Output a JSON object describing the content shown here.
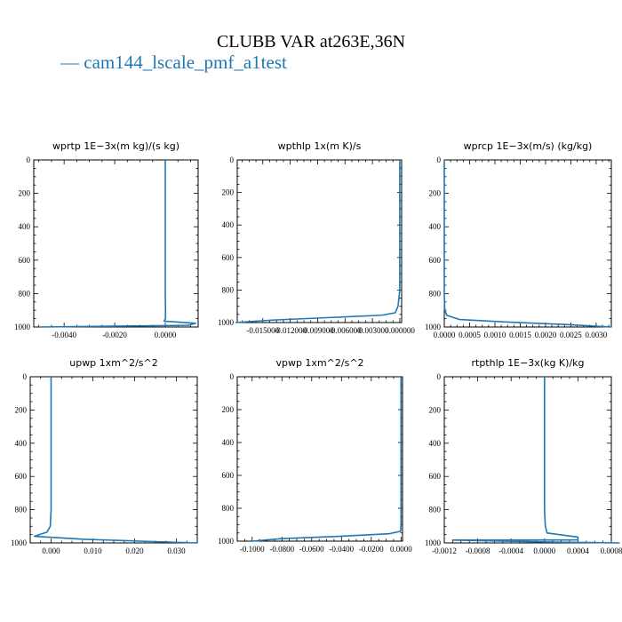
{
  "page_title": "CLUBB VAR at263E,36N",
  "legend": {
    "label": "cam144_lscale_pmf_a1test",
    "color": "#1f77b4"
  },
  "chart_data": [
    {
      "type": "line",
      "title": "wprtp  1E−3x(m kg)/(s kg)",
      "series": [
        {
          "name": "cam144_lscale_pmf_a1test",
          "color": "#1f77b4",
          "x": [
            0.0,
            0.0,
            0.0,
            0.0,
            0.0,
            1e-05,
            1e-05,
            -5e-05,
            0.0012,
            0.0009,
            -0.005
          ],
          "y": [
            0,
            200,
            400,
            600,
            800,
            900,
            950,
            965,
            978,
            990,
            1000
          ]
        }
      ],
      "xlim": [
        -0.0052,
        0.0013
      ],
      "xticks": [
        -0.004,
        -0.002,
        0.0
      ],
      "xtick_labels": [
        "-0.0040",
        "-0.0020",
        "0.0000"
      ],
      "ylim": [
        1000,
        0
      ],
      "yticks": [
        0,
        200,
        400,
        600,
        800,
        1000
      ],
      "ytick_labels": [
        "0",
        "200",
        "400",
        "600",
        "800",
        "1000"
      ],
      "xlabel": "",
      "ylabel": ""
    },
    {
      "type": "line",
      "title": "wpthlp  1x(m K)/s",
      "series": [
        {
          "name": "cam144_lscale_pmf_a1test",
          "color": "#1f77b4",
          "x": [
            0.0,
            0.0,
            0.0,
            0.0,
            0.0,
            -0.0002,
            -0.0005,
            -0.002,
            -0.008,
            -0.014,
            -0.018
          ],
          "y": [
            0,
            200,
            400,
            600,
            800,
            900,
            940,
            955,
            970,
            985,
            1000
          ]
        }
      ],
      "xlim": [
        -0.0178,
        0.0002
      ],
      "xticks": [
        -0.015,
        -0.012,
        -0.009,
        -0.006,
        -0.003,
        0.0
      ],
      "xtick_labels": [
        "-0.015000",
        "-0.012000",
        "-0.009000",
        "-0.006000",
        "-0.003000",
        "0.000000"
      ],
      "ylim": [
        1000,
        0
      ],
      "yticks": [
        0,
        200,
        400,
        600,
        800,
        1000
      ],
      "ytick_labels": [
        "0",
        "200",
        "400",
        "600",
        "800",
        "1000"
      ],
      "xlabel": "",
      "ylabel": ""
    },
    {
      "type": "line",
      "title": "wprcp  1E−3x(m/s) (kg/kg)",
      "series": [
        {
          "name": "cam144_lscale_pmf_a1test",
          "color": "#1f77b4",
          "x": [
            0.0,
            0.0,
            0.0,
            0.0,
            0.0,
            1e-05,
            5e-05,
            0.0003,
            0.0012,
            0.0024,
            0.0033
          ],
          "y": [
            0,
            200,
            400,
            600,
            800,
            900,
            930,
            955,
            970,
            985,
            1000
          ]
        }
      ],
      "xlim": [
        0.0,
        0.0033
      ],
      "xticks": [
        0.0,
        0.0005,
        0.001,
        0.0015,
        0.002,
        0.0025,
        0.003
      ],
      "xtick_labels": [
        "0.0000",
        "0.0005",
        "0.0010",
        "0.0015",
        "0.0020",
        "0.0025",
        "0.0030"
      ],
      "ylim": [
        1000,
        0
      ],
      "yticks": [
        0,
        200,
        400,
        600,
        800,
        1000
      ],
      "ytick_labels": [
        "0",
        "200",
        "400",
        "600",
        "800",
        "1000"
      ],
      "xlabel": "",
      "ylabel": ""
    },
    {
      "type": "line",
      "title": "upwp  1xm^2/s^2",
      "series": [
        {
          "name": "cam144_lscale_pmf_a1test",
          "color": "#1f77b4",
          "x": [
            0.0,
            0.0,
            0.0,
            0.0,
            0.0,
            -0.0002,
            -0.001,
            -0.004,
            0.008,
            0.022,
            0.035
          ],
          "y": [
            0,
            200,
            400,
            600,
            800,
            900,
            935,
            960,
            978,
            990,
            1000
          ]
        }
      ],
      "xlim": [
        -0.005,
        0.035
      ],
      "xticks": [
        0.0,
        0.01,
        0.02,
        0.03
      ],
      "xtick_labels": [
        "0.000",
        "0.010",
        "0.020",
        "0.030"
      ],
      "ylim": [
        1000,
        0
      ],
      "yticks": [
        0,
        200,
        400,
        600,
        800,
        1000
      ],
      "ytick_labels": [
        "0",
        "200",
        "400",
        "600",
        "800",
        "1000"
      ],
      "xlabel": "",
      "ylabel": ""
    },
    {
      "type": "line",
      "title": "vpwp  1xm^2/s^2",
      "series": [
        {
          "name": "cam144_lscale_pmf_a1test",
          "color": "#1f77b4",
          "x": [
            0.0,
            0.0,
            0.0,
            0.0,
            0.0,
            0.0,
            -0.0003,
            -0.008,
            -0.04,
            -0.08,
            -0.1
          ],
          "y": [
            0,
            200,
            400,
            600,
            800,
            900,
            940,
            955,
            970,
            985,
            1000
          ]
        }
      ],
      "xlim": [
        -0.11,
        0.001
      ],
      "xticks": [
        -0.1,
        -0.08,
        -0.06,
        -0.04,
        -0.02,
        0.0
      ],
      "xtick_labels": [
        "-0.1000",
        "-0.0800",
        "-0.0600",
        "-0.0400",
        "-0.0200",
        "0.0000"
      ],
      "ylim": [
        1000,
        0
      ],
      "yticks": [
        0,
        200,
        400,
        600,
        800,
        1000
      ],
      "ytick_labels": [
        "0",
        "200",
        "400",
        "600",
        "800",
        "1000"
      ],
      "xlabel": "",
      "ylabel": ""
    },
    {
      "type": "line",
      "title": "rtpthlp  1E−3x(kg K)/kg",
      "series": [
        {
          "name": "cam144_lscale_pmf_a1test",
          "color": "#1f77b4",
          "x": [
            0.0,
            0.0,
            0.0,
            0.0,
            0.0,
            1e-05,
            3e-05,
            0.0004,
            0.0004,
            -0.0011,
            0.0001,
            0.0009
          ],
          "y": [
            0,
            200,
            400,
            600,
            800,
            900,
            940,
            965,
            982,
            983,
            995,
            1000
          ]
        }
      ],
      "xlim": [
        -0.0012,
        0.0008
      ],
      "xticks": [
        -0.0012,
        -0.0008,
        -0.0004,
        0.0,
        0.0004,
        0.0008
      ],
      "xtick_labels": [
        "-0.0012",
        "-0.0008",
        "-0.0004",
        "0.0000",
        "0.0004",
        "0.0008"
      ],
      "ylim": [
        1000,
        0
      ],
      "yticks": [
        0,
        200,
        400,
        600,
        800,
        1000
      ],
      "ytick_labels": [
        "0",
        "200",
        "400",
        "600",
        "800",
        "1000"
      ],
      "xlabel": "",
      "ylabel": ""
    }
  ]
}
